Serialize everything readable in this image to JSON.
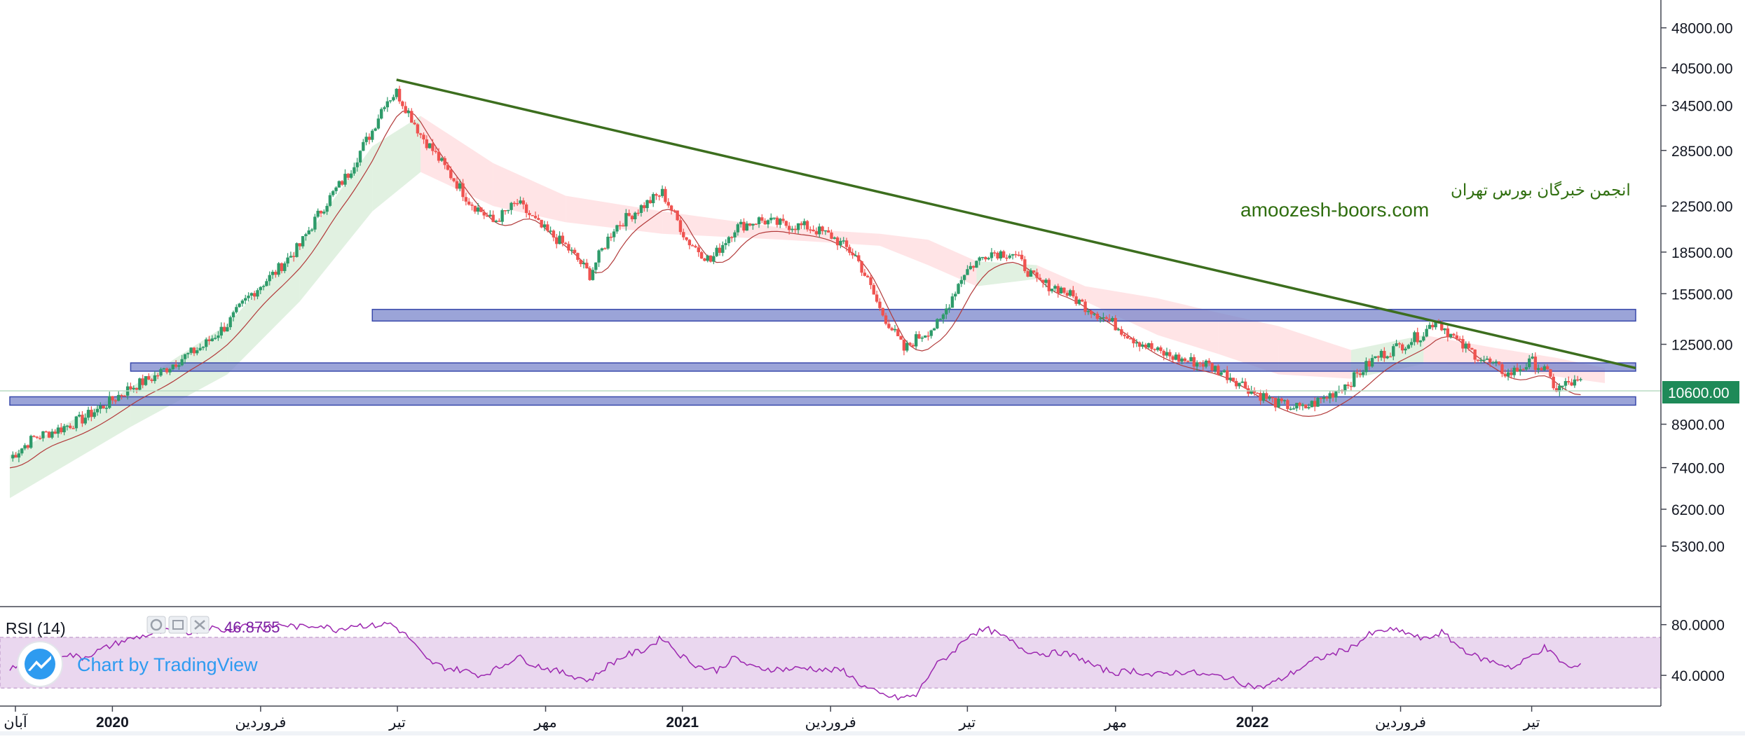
{
  "chart_data": {
    "type": "candlestick",
    "price_scale": "log",
    "price_ylim": [
      4700,
      50000
    ],
    "price_ticks": [
      "48000.00",
      "40500.00",
      "34500.00",
      "28500.00",
      "22500.00",
      "18500.00",
      "15500.00",
      "12500.00",
      "8900.00",
      "7400.00",
      "6200.00",
      "5300.00"
    ],
    "last_price_label": "10600.00",
    "x_ticks": [
      "آبان",
      "2020",
      "فروردین",
      "تیر",
      "مهر",
      "2021",
      "فروردین",
      "تیر",
      "مهر",
      "2022",
      "فروردین",
      "تیر"
    ],
    "watermark_persian": "انجمن خبرگان بورس تهران",
    "watermark_site": "amoozesh-boors.com",
    "trendline": {
      "from": [
        "تیر 1399",
        38500
      ],
      "to": [
        "مرداد 1401",
        11300
      ]
    },
    "horizontal_zones": [
      {
        "low": 13800,
        "high": 14500
      },
      {
        "low": 11150,
        "high": 11550
      },
      {
        "low": 9650,
        "high": 10000
      }
    ],
    "close_series": [
      [
        0,
        7700
      ],
      [
        4,
        8400
      ],
      [
        8,
        8700
      ],
      [
        12,
        9100
      ],
      [
        16,
        9700
      ],
      [
        20,
        10400
      ],
      [
        24,
        10900
      ],
      [
        28,
        11700
      ],
      [
        32,
        12400
      ],
      [
        36,
        13600
      ],
      [
        40,
        15500
      ],
      [
        44,
        17000
      ],
      [
        48,
        19000
      ],
      [
        52,
        22500
      ],
      [
        56,
        25800
      ],
      [
        60,
        31000
      ],
      [
        62,
        35000
      ],
      [
        64,
        36500
      ],
      [
        66,
        33500
      ],
      [
        68,
        30500
      ],
      [
        72,
        26500
      ],
      [
        76,
        23000
      ],
      [
        80,
        21000
      ],
      [
        84,
        22800
      ],
      [
        88,
        20500
      ],
      [
        92,
        19000
      ],
      [
        96,
        16800
      ],
      [
        100,
        20500
      ],
      [
        104,
        22200
      ],
      [
        108,
        23800
      ],
      [
        112,
        19500
      ],
      [
        116,
        17800
      ],
      [
        120,
        20500
      ],
      [
        124,
        21200
      ],
      [
        128,
        20800
      ],
      [
        132,
        20600
      ],
      [
        136,
        19800
      ],
      [
        140,
        18200
      ],
      [
        144,
        14500
      ],
      [
        148,
        12200
      ],
      [
        150,
        12800
      ],
      [
        154,
        13700
      ],
      [
        158,
        17000
      ],
      [
        162,
        18500
      ],
      [
        166,
        18400
      ],
      [
        170,
        16300
      ],
      [
        174,
        15800
      ],
      [
        178,
        14700
      ],
      [
        182,
        13800
      ],
      [
        186,
        12800
      ],
      [
        190,
        12100
      ],
      [
        194,
        11700
      ],
      [
        198,
        11500
      ],
      [
        202,
        10900
      ],
      [
        206,
        10200
      ],
      [
        210,
        9700
      ],
      [
        214,
        9500
      ],
      [
        218,
        10000
      ],
      [
        222,
        10700
      ],
      [
        226,
        11800
      ],
      [
        230,
        12400
      ],
      [
        234,
        13100
      ],
      [
        236,
        13900
      ],
      [
        240,
        12500
      ],
      [
        244,
        11700
      ],
      [
        248,
        11000
      ],
      [
        252,
        11600
      ],
      [
        254,
        11200
      ],
      [
        256,
        10300
      ],
      [
        258,
        10600
      ],
      [
        260,
        10600
      ]
    ],
    "cloud_band": [
      [
        0,
        6500,
        7800
      ],
      [
        20,
        8800,
        10400
      ],
      [
        36,
        11000,
        13600
      ],
      [
        48,
        15000,
        19000
      ],
      [
        60,
        22000,
        29000
      ],
      [
        68,
        26000,
        33000
      ],
      [
        80,
        22500,
        27000
      ],
      [
        92,
        21000,
        23500
      ],
      [
        108,
        20000,
        22000
      ],
      [
        128,
        19500,
        20500
      ],
      [
        144,
        19000,
        20000
      ],
      [
        152,
        17500,
        19500
      ],
      [
        160,
        16000,
        17800
      ],
      [
        170,
        16500,
        17500
      ],
      [
        178,
        15000,
        16000
      ],
      [
        190,
        13000,
        15200
      ],
      [
        200,
        12000,
        14300
      ],
      [
        210,
        11000,
        13500
      ],
      [
        222,
        10800,
        12200
      ],
      [
        234,
        11500,
        13000
      ],
      [
        246,
        11400,
        12300
      ],
      [
        256,
        10900,
        11800
      ],
      [
        264,
        10600,
        11300
      ]
    ],
    "rsi": {
      "label": "RSI (14)",
      "value_label": "46.8755",
      "ticks": [
        "80.0000",
        "40.0000"
      ],
      "ylim": [
        18,
        92
      ],
      "band": [
        30,
        70
      ],
      "series": [
        [
          0,
          46
        ],
        [
          3,
          50
        ],
        [
          6,
          53
        ],
        [
          9,
          57
        ],
        [
          12,
          54
        ],
        [
          15,
          60
        ],
        [
          18,
          66
        ],
        [
          21,
          70
        ],
        [
          24,
          73
        ],
        [
          27,
          76
        ],
        [
          30,
          74
        ],
        [
          33,
          78
        ],
        [
          36,
          75
        ],
        [
          39,
          80
        ],
        [
          42,
          77
        ],
        [
          45,
          80
        ],
        [
          48,
          78
        ],
        [
          51,
          80
        ],
        [
          54,
          76
        ],
        [
          57,
          80
        ],
        [
          60,
          79
        ],
        [
          63,
          81
        ],
        [
          66,
          70
        ],
        [
          69,
          52
        ],
        [
          72,
          46
        ],
        [
          75,
          44
        ],
        [
          78,
          40
        ],
        [
          81,
          46
        ],
        [
          84,
          55
        ],
        [
          87,
          48
        ],
        [
          90,
          44
        ],
        [
          93,
          40
        ],
        [
          96,
          36
        ],
        [
          99,
          48
        ],
        [
          102,
          56
        ],
        [
          105,
          60
        ],
        [
          108,
          70
        ],
        [
          111,
          56
        ],
        [
          114,
          47
        ],
        [
          117,
          44
        ],
        [
          120,
          54
        ],
        [
          123,
          46
        ],
        [
          126,
          45
        ],
        [
          129,
          45
        ],
        [
          132,
          46
        ],
        [
          135,
          44
        ],
        [
          138,
          44
        ],
        [
          141,
          32
        ],
        [
          144,
          25
        ],
        [
          147,
          22
        ],
        [
          150,
          24
        ],
        [
          153,
          47
        ],
        [
          156,
          58
        ],
        [
          159,
          73
        ],
        [
          162,
          76
        ],
        [
          165,
          69
        ],
        [
          168,
          60
        ],
        [
          171,
          57
        ],
        [
          174,
          58
        ],
        [
          177,
          54
        ],
        [
          180,
          46
        ],
        [
          183,
          42
        ],
        [
          186,
          44
        ],
        [
          189,
          40
        ],
        [
          192,
          42
        ],
        [
          195,
          43
        ],
        [
          198,
          40
        ],
        [
          201,
          39
        ],
        [
          204,
          34
        ],
        [
          207,
          30
        ],
        [
          210,
          36
        ],
        [
          213,
          44
        ],
        [
          216,
          52
        ],
        [
          219,
          57
        ],
        [
          222,
          62
        ],
        [
          225,
          72
        ],
        [
          228,
          76
        ],
        [
          231,
          74
        ],
        [
          234,
          68
        ],
        [
          237,
          74
        ],
        [
          240,
          62
        ],
        [
          243,
          54
        ],
        [
          246,
          50
        ],
        [
          249,
          46
        ],
        [
          252,
          56
        ],
        [
          254,
          62
        ],
        [
          256,
          54
        ],
        [
          258,
          46
        ],
        [
          260,
          47
        ]
      ]
    }
  },
  "colors": {
    "up": "#26a69a",
    "up_candle": "#2e9b6a",
    "down": "#ef5350",
    "kijun": "#b23a3a",
    "cloud_bull": "#c8e6c9",
    "cloud_bear": "#ffcdd2",
    "trendline": "#3c6e1e",
    "zone_fill": "#7986cb",
    "zone_stroke": "#3949ab",
    "rsi_line": "#9c27b0",
    "rsi_band": "#ead7ef",
    "watermark": "#2f6e0f",
    "last_price_bg": "#1e8a58"
  },
  "toolbar": {
    "icons": [
      "settings-icon",
      "source-icon",
      "close-icon"
    ]
  },
  "attribution": {
    "text": "Chart by TradingView",
    "icon": "tradingview-logo-icon"
  }
}
